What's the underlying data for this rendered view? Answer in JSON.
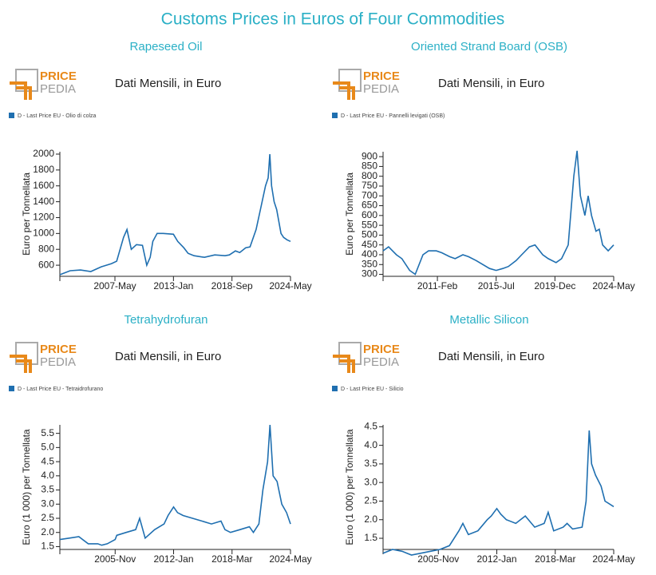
{
  "title": "Customs Prices in Euros of Four Commodities",
  "logo": {
    "top": "PRICE",
    "bottom": "PEDIA"
  },
  "chart_data": [
    {
      "type": "line",
      "title": "Rapeseed Oil",
      "subtitle": "Dati Mensili, in Euro",
      "ylabel": "Euro per Tonnellata",
      "x": [
        "2002-Jan",
        "2003-Jan",
        "2004-Jan",
        "2005-Jan",
        "2006-Jan",
        "2007-Jan",
        "2007-Jul",
        "2008-Mar",
        "2008-Jul",
        "2008-Dec",
        "2009-Jun",
        "2010-Jan",
        "2010-Jun",
        "2010-Oct",
        "2011-Jan",
        "2011-Jun",
        "2012-Jan",
        "2013-Jan",
        "2013-Jun",
        "2014-Jan",
        "2014-Jun",
        "2015-Jan",
        "2016-Jan",
        "2017-Jan",
        "2018-Jan",
        "2018-Jun",
        "2019-Jan",
        "2019-Jun",
        "2020-Jan",
        "2020-Jun",
        "2021-Jan",
        "2021-Jun",
        "2021-Dec",
        "2022-Mar",
        "2022-May",
        "2022-Jul",
        "2022-Oct",
        "2023-Jan",
        "2023-Jun",
        "2023-Sep",
        "2024-Jan",
        "2024-May"
      ],
      "series": [
        {
          "name": "D - Last Price EU - Olio di colza",
          "color": "#1f6fb0",
          "values": [
            480,
            530,
            540,
            520,
            580,
            620,
            650,
            950,
            1050,
            800,
            860,
            850,
            600,
            700,
            900,
            1000,
            1000,
            990,
            900,
            820,
            750,
            720,
            700,
            730,
            720,
            730,
            780,
            760,
            820,
            830,
            1050,
            1300,
            1600,
            1700,
            2000,
            1600,
            1400,
            1300,
            1000,
            950,
            920,
            900
          ]
        }
      ],
      "xlim": [
        "2002-Jan",
        "2024-May"
      ],
      "xticks": [
        "2007-May",
        "2013-Jan",
        "2018-Sep",
        "2024-May"
      ],
      "ylim": [
        460,
        2030
      ],
      "yticks": [
        600,
        800,
        1000,
        1200,
        1400,
        1600,
        1800,
        2000
      ]
    },
    {
      "type": "line",
      "title": "Oriented Strand Board (OSB)",
      "subtitle": "Dati Mensili, in Euro",
      "ylabel": "Euro per Tonnellata",
      "x": [
        "2007-Jan",
        "2007-Jun",
        "2008-Jan",
        "2008-Jun",
        "2009-Jan",
        "2009-Jun",
        "2010-Jan",
        "2010-Jun",
        "2011-Jan",
        "2011-Jun",
        "2012-Jan",
        "2012-Jun",
        "2013-Jan",
        "2013-Jun",
        "2014-Jan",
        "2015-Jan",
        "2015-Jul",
        "2016-Jan",
        "2016-Jun",
        "2017-Jan",
        "2017-Jun",
        "2018-Jan",
        "2018-Jun",
        "2019-Jan",
        "2019-Jun",
        "2020-Jan",
        "2020-Jun",
        "2020-Dec",
        "2021-May",
        "2021-Aug",
        "2021-Nov",
        "2022-Mar",
        "2022-Jun",
        "2022-Sep",
        "2023-Jan",
        "2023-Apr",
        "2023-Jul",
        "2023-Dec",
        "2024-May"
      ],
      "series": [
        {
          "name": "D - Last Price EU - Pannelli levigati (OSB)",
          "color": "#1f6fb0",
          "values": [
            420,
            440,
            400,
            380,
            320,
            300,
            400,
            420,
            420,
            410,
            390,
            380,
            400,
            390,
            370,
            330,
            320,
            330,
            340,
            370,
            400,
            440,
            450,
            400,
            380,
            360,
            380,
            450,
            800,
            930,
            700,
            600,
            700,
            600,
            520,
            530,
            450,
            420,
            450
          ]
        }
      ],
      "xlim": [
        "2007-Jan",
        "2024-May"
      ],
      "xticks": [
        "2011-Feb",
        "2015-Jul",
        "2019-Dec",
        "2024-May"
      ],
      "ylim": [
        290,
        925
      ],
      "yticks": [
        300,
        350,
        400,
        450,
        500,
        550,
        600,
        650,
        700,
        750,
        800,
        850,
        900
      ]
    },
    {
      "type": "line",
      "title": "Tetrahydrofuran",
      "subtitle": "Dati Mensili, in Euro",
      "ylabel": "Euro (1 000) per Tonnellata",
      "x": [
        "2000-Jan",
        "2001-Jan",
        "2002-Jan",
        "2003-Jan",
        "2004-Jan",
        "2004-Jun",
        "2005-Jan",
        "2005-Nov",
        "2006-Jan",
        "2007-Jan",
        "2008-Jan",
        "2008-Jun",
        "2009-Jan",
        "2010-Jan",
        "2011-Jan",
        "2011-Jun",
        "2012-Jan",
        "2012-Jun",
        "2013-Jan",
        "2014-Jan",
        "2015-Jan",
        "2016-Jan",
        "2017-Jan",
        "2017-Jun",
        "2018-Jan",
        "2019-Jan",
        "2020-Jan",
        "2020-Jun",
        "2021-Jan",
        "2021-Jun",
        "2021-Dec",
        "2022-Mar",
        "2022-Jul",
        "2022-Dec",
        "2023-Jun",
        "2023-Dec",
        "2024-May"
      ],
      "series": [
        {
          "name": "D - Last Price EU - Tetraidrofurano",
          "color": "#1f6fb0",
          "values": [
            1.75,
            1.8,
            1.85,
            1.6,
            1.6,
            1.55,
            1.6,
            1.75,
            1.9,
            2.0,
            2.1,
            2.5,
            1.8,
            2.1,
            2.3,
            2.6,
            2.9,
            2.7,
            2.6,
            2.5,
            2.4,
            2.3,
            2.4,
            2.1,
            2.0,
            2.1,
            2.2,
            2.0,
            2.3,
            3.5,
            4.5,
            5.8,
            4.0,
            3.8,
            3.0,
            2.7,
            2.3
          ]
        }
      ],
      "xlim": [
        "2000-Jan",
        "2024-May"
      ],
      "xticks": [
        "2005-Nov",
        "2012-Jan",
        "2018-Mar",
        "2024-May"
      ],
      "ylim": [
        1.4,
        5.8
      ],
      "yticks": [
        1.5,
        {
          "value": 2,
          "label": "2.0"
        },
        2.5,
        {
          "value": 3,
          "label": "3.0"
        },
        3.5,
        {
          "value": 4,
          "label": "4.0"
        },
        4.5,
        {
          "value": 5,
          "label": "5.0"
        },
        5.5
      ]
    },
    {
      "type": "line",
      "title": "Metallic Silicon",
      "subtitle": "Dati Mensili, in Euro",
      "ylabel": "Euro (1 000) per Tonnellata",
      "x": [
        "2000-Jan",
        "2001-Jan",
        "2002-Jan",
        "2003-Jan",
        "2004-Jan",
        "2005-Jan",
        "2006-Jan",
        "2007-Jan",
        "2008-Jan",
        "2008-Jun",
        "2009-Jan",
        "2010-Jan",
        "2011-Jan",
        "2011-Jun",
        "2012-Jan",
        "2012-Jun",
        "2013-Jan",
        "2014-Jan",
        "2015-Jan",
        "2016-Jan",
        "2017-Jan",
        "2017-Jun",
        "2018-Jan",
        "2019-Jan",
        "2019-Jun",
        "2020-Jan",
        "2021-Jan",
        "2021-Jun",
        "2021-Oct",
        "2022-Jan",
        "2022-Jun",
        "2023-Jan",
        "2023-Jun",
        "2024-May"
      ],
      "series": [
        {
          "name": "D - Last Price EU - Silicio",
          "color": "#1f6fb0",
          "values": [
            1.1,
            1.2,
            1.15,
            1.05,
            1.1,
            1.15,
            1.2,
            1.3,
            1.7,
            1.9,
            1.6,
            1.7,
            2.0,
            2.1,
            2.3,
            2.15,
            2.0,
            1.9,
            2.1,
            1.8,
            1.9,
            2.2,
            1.7,
            1.8,
            1.9,
            1.75,
            1.8,
            2.5,
            4.4,
            3.5,
            3.2,
            2.9,
            2.5,
            2.35
          ]
        }
      ],
      "xlim": [
        "2000-Jan",
        "2024-May"
      ],
      "xticks": [
        "2005-Nov",
        "2012-Jan",
        "2018-Mar",
        "2024-May"
      ],
      "ylim": [
        1.2,
        4.55
      ],
      "yticks": [
        1.5,
        {
          "value": 2,
          "label": "2.0"
        },
        2.5,
        {
          "value": 3,
          "label": "3.0"
        },
        3.5,
        {
          "value": 4,
          "label": "4.0"
        },
        4.5
      ]
    }
  ]
}
